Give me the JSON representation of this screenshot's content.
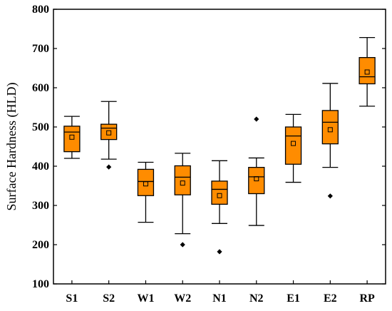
{
  "chart_data": {
    "type": "box",
    "ylabel": "Surface Hardness (HLD)",
    "ylim": [
      100,
      800
    ],
    "yticks": [
      100,
      200,
      300,
      400,
      500,
      600,
      700,
      800
    ],
    "grid": false,
    "colors": {
      "box_fill": "#FF8C00",
      "stroke": "#000000"
    },
    "categories": [
      "S1",
      "S2",
      "W1",
      "W2",
      "N1",
      "N2",
      "E1",
      "E2",
      "RP"
    ],
    "boxes": [
      {
        "category": "S1",
        "whisker_low": 420,
        "q1": 437,
        "median": 487,
        "q3": 502,
        "whisker_high": 527,
        "mean": 474,
        "outliers": []
      },
      {
        "category": "S2",
        "whisker_low": 418,
        "q1": 468,
        "median": 497,
        "q3": 507,
        "whisker_high": 565,
        "mean": 485,
        "outliers": [
          398
        ]
      },
      {
        "category": "W1",
        "whisker_low": 257,
        "q1": 325,
        "median": 361,
        "q3": 392,
        "whisker_high": 410,
        "mean": 355,
        "outliers": []
      },
      {
        "category": "W2",
        "whisker_low": 228,
        "q1": 327,
        "median": 372,
        "q3": 401,
        "whisker_high": 433,
        "mean": 357,
        "outliers": [
          200
        ]
      },
      {
        "category": "N1",
        "whisker_low": 254,
        "q1": 303,
        "median": 341,
        "q3": 362,
        "whisker_high": 414,
        "mean": 325,
        "outliers": [
          182
        ]
      },
      {
        "category": "N2",
        "whisker_low": 249,
        "q1": 330,
        "median": 373,
        "q3": 397,
        "whisker_high": 421,
        "mean": 368,
        "outliers": [
          520
        ]
      },
      {
        "category": "E1",
        "whisker_low": 359,
        "q1": 405,
        "median": 477,
        "q3": 500,
        "whisker_high": 532,
        "mean": 458,
        "outliers": []
      },
      {
        "category": "E2",
        "whisker_low": 397,
        "q1": 457,
        "median": 512,
        "q3": 542,
        "whisker_high": 611,
        "mean": 493,
        "outliers": [
          324
        ]
      },
      {
        "category": "RP",
        "whisker_low": 553,
        "q1": 610,
        "median": 628,
        "q3": 677,
        "whisker_high": 728,
        "mean": 640,
        "outliers": []
      }
    ]
  }
}
